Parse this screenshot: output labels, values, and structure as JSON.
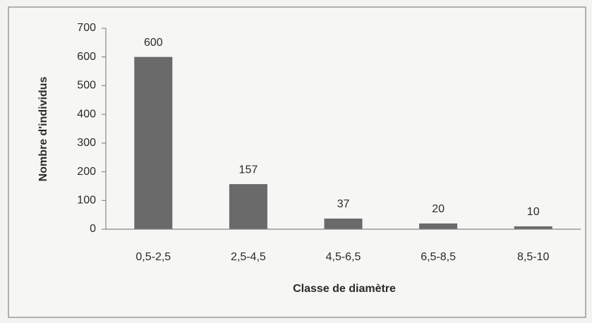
{
  "chart_data": {
    "type": "bar",
    "categories": [
      "0,5-2,5",
      "2,5-4,5",
      "4,5-6,5",
      "6,5-8,5",
      "8,5-10"
    ],
    "values": [
      600,
      157,
      37,
      20,
      10
    ],
    "color": "#6a6a6a",
    "xlabel": "Classe de diamètre",
    "ylabel": "Nombre d'individus",
    "ylim": [
      0,
      700
    ],
    "yticks": [
      0,
      100,
      200,
      300,
      400,
      500,
      600,
      700
    ],
    "grid": false
  }
}
